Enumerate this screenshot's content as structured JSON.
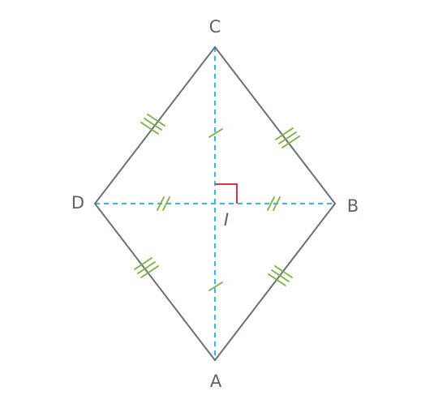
{
  "figure": {
    "vertices": {
      "A": "A",
      "B": "B",
      "C": "C",
      "D": "D"
    },
    "center": "I",
    "colors": {
      "side": "#6b6f7d",
      "diagonal": "#39b7e6",
      "tick": "#79b53a",
      "right_angle": "#d13a4e",
      "label": "#5b6270"
    }
  }
}
